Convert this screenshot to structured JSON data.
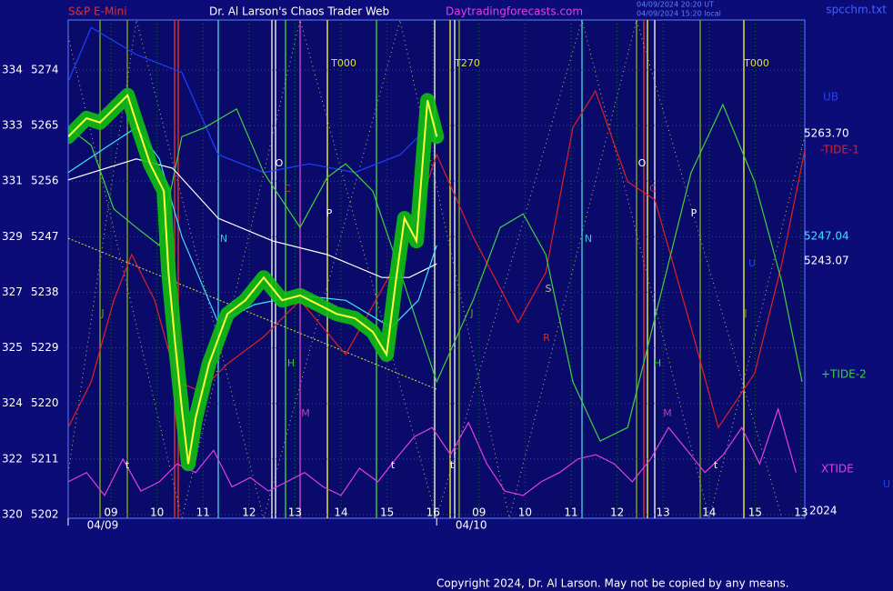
{
  "chart_data": {
    "type": "line",
    "header": [
      "S&P E-Mini",
      "Dr. Al Larson's Chaos Trader Web",
      "Daytradingforecasts.com"
    ],
    "timestamps": [
      "04/09/2024 20:20 UT",
      "04/09/2024 15:20 local"
    ],
    "file_label": "spcchm.txt",
    "copyright": "Copyright 2024, Dr. Al Larson. May not be copied by any means.",
    "xlim": [
      -0.93,
      15.08
    ],
    "ylim": [
      5201.4,
      5282.1
    ],
    "yticks": [
      5274,
      5265,
      5256,
      5247,
      5238,
      5229,
      5220,
      5211,
      5202
    ],
    "left_labels": [
      334,
      333,
      331,
      329,
      327,
      325,
      324,
      322,
      320
    ],
    "xticks": [
      {
        "value": 0,
        "label": "09"
      },
      {
        "value": 1,
        "label": "10"
      },
      {
        "value": 2,
        "label": "11"
      },
      {
        "value": 3,
        "label": "12"
      },
      {
        "value": 4,
        "label": "13"
      },
      {
        "value": 5,
        "label": "14"
      },
      {
        "value": 6,
        "label": "15"
      },
      {
        "value": 7,
        "label": "16"
      },
      {
        "value": 8,
        "label": "09"
      },
      {
        "value": 9,
        "label": "10"
      },
      {
        "value": 10,
        "label": "11"
      },
      {
        "value": 11,
        "label": "12"
      },
      {
        "value": 12,
        "label": "13"
      },
      {
        "value": 13,
        "label": "14"
      },
      {
        "value": 14,
        "label": "15"
      },
      {
        "value": 15,
        "label": "13"
      }
    ],
    "date_ticks": [
      {
        "value": -0.18,
        "label": "04/09"
      },
      {
        "value": 7.83,
        "label": "04/10"
      }
    ],
    "year_label": "2024",
    "grid": true,
    "annotations": [
      "O",
      "C",
      "P",
      "N",
      "H",
      "M",
      "J",
      "t",
      "O",
      "C",
      "P",
      "N",
      "H",
      "M",
      "J",
      "S",
      "R",
      "U",
      "J",
      "t",
      "t",
      "t",
      "T000",
      "T270",
      "T000",
      "U"
    ],
    "series": [
      {
        "name": "UB",
        "color": "#2040ff",
        "x": [
          -0.93,
          -0.43,
          0.55,
          1.54,
          2.33,
          3.32,
          4.31,
          5.3,
          6.29,
          7.08
        ],
        "values": [
          5272.1,
          5280.9,
          5276.5,
          5273.6,
          5260.3,
          5257.4,
          5258.8,
          5257.4,
          5260.3,
          5266.2
        ]
      },
      {
        "name": "-TIDE-1",
        "color": "#e02020",
        "x": [
          -0.93,
          -0.43,
          0.06,
          0.45,
          0.95,
          1.44,
          1.94,
          2.53,
          3.32,
          4.11,
          5.1,
          6.09,
          6.68,
          7.08,
          7.87,
          8.85,
          9.45,
          10.04,
          10.53,
          11.23,
          11.82,
          12.61,
          13.2,
          13.99,
          14.58,
          15.08
        ],
        "values": [
          5216.1,
          5223.5,
          5236.7,
          5244.1,
          5236.7,
          5223.5,
          5222,
          5226.4,
          5230.8,
          5236.7,
          5227.9,
          5241.2,
          5251.5,
          5260.3,
          5247,
          5233.1,
          5241.2,
          5264.7,
          5270.6,
          5255.9,
          5253,
          5232.3,
          5216.1,
          5224.9,
          5242.6,
          5261
        ]
      },
      {
        "name": "+TIDE-2",
        "color": "#40d040",
        "x": [
          -0.93,
          -0.43,
          0.06,
          0.55,
          1.05,
          1.54,
          2.04,
          2.73,
          3.32,
          4.11,
          4.7,
          5.1,
          5.69,
          6.29,
          7.08,
          7.87,
          8.46,
          8.96,
          9.45,
          10.04,
          10.63,
          11.23,
          11.82,
          12.61,
          13.3,
          13.99,
          14.58,
          15.02
        ],
        "values": [
          5264.7,
          5261.8,
          5251.5,
          5248.5,
          5245.6,
          5263.2,
          5264.7,
          5267.7,
          5257.4,
          5248.5,
          5256.6,
          5258.8,
          5254.4,
          5241.2,
          5223.5,
          5236.7,
          5248.5,
          5250.7,
          5244.1,
          5223.5,
          5213.9,
          5216.1,
          5233.8,
          5257.4,
          5268.4,
          5255.9,
          5239.7,
          5223.5
        ]
      },
      {
        "name": "XTIDE",
        "color": "#e040e0",
        "x": [
          -0.93,
          -0.53,
          -0.14,
          0.26,
          0.65,
          1.05,
          1.44,
          1.84,
          2.23,
          2.63,
          3.03,
          3.42,
          3.82,
          4.21,
          4.61,
          5.0,
          5.4,
          5.8,
          6.19,
          6.59,
          6.98,
          7.38,
          7.77,
          8.17,
          8.56,
          8.96,
          9.35,
          9.75,
          10.15,
          10.54,
          10.94,
          11.33,
          11.73,
          12.12,
          12.52,
          12.91,
          13.31,
          13.71,
          14.1,
          14.5,
          14.89
        ],
        "values": [
          5207.3,
          5208.8,
          5205.1,
          5211,
          5205.8,
          5207.3,
          5210.2,
          5208.8,
          5212.4,
          5206.5,
          5208,
          5205.8,
          5207.3,
          5208.8,
          5206.5,
          5205.1,
          5209.5,
          5207.3,
          5211,
          5214.6,
          5216.1,
          5211.7,
          5216.9,
          5210.2,
          5205.8,
          5205.1,
          5207.3,
          5208.8,
          5211,
          5211.7,
          5210.2,
          5207.3,
          5211,
          5216.1,
          5212.4,
          5208.8,
          5211.7,
          5216.1,
          5210.2,
          5219.1,
          5208.8
        ]
      },
      {
        "color": "#ffffff",
        "x": [
          -0.93,
          0.55,
          1.34,
          2.33,
          3.52,
          4.7,
          5.89,
          6.48,
          7.08
        ],
        "values": [
          5256.2,
          5259.6,
          5258.1,
          5250,
          5246.3,
          5244.1,
          5240.4,
          5240.4,
          5242.6
        ],
        "end_label": {
          "value": 5243.07,
          "label": "5243.07"
        }
      },
      {
        "color": "#40e0ff",
        "x": [
          -0.93,
          -0.04,
          0.55,
          1.05,
          1.54,
          2.33,
          3.12,
          4.11,
          5.1,
          6.09,
          6.68,
          7.08
        ],
        "values": [
          5257.4,
          5261.8,
          5264.7,
          5259.6,
          5247,
          5233.1,
          5236,
          5237.5,
          5236.7,
          5232.3,
          5236.7,
          5245.6
        ],
        "end_label": {
          "value": 5247.04,
          "label": "5247.04"
        }
      },
      {
        "color": "#ffff40",
        "glow": "#10c010",
        "x": [
          -0.93,
          -0.53,
          -0.24,
          0.06,
          0.36,
          0.55,
          0.85,
          1.15,
          1.25,
          1.38,
          1.54,
          1.68,
          1.84,
          2.13,
          2.53,
          2.92,
          3.32,
          3.72,
          4.11,
          4.51,
          4.9,
          5.3,
          5.69,
          5.99,
          6.19,
          6.38,
          6.64,
          6.88,
          7.08
        ],
        "values": [
          5263.2,
          5266.2,
          5265.5,
          5267.7,
          5269.9,
          5265.5,
          5258.8,
          5254.4,
          5241.2,
          5230.8,
          5219.1,
          5210.2,
          5217.6,
          5226.4,
          5234.5,
          5236.7,
          5240.4,
          5236.7,
          5237.5,
          5236,
          5234.5,
          5233.8,
          5231.6,
          5227.9,
          5239.7,
          5250,
          5246.3,
          5269.1,
          5263.2
        ],
        "end_label": {
          "value": 5263.7,
          "label": "5263.70"
        }
      }
    ]
  }
}
